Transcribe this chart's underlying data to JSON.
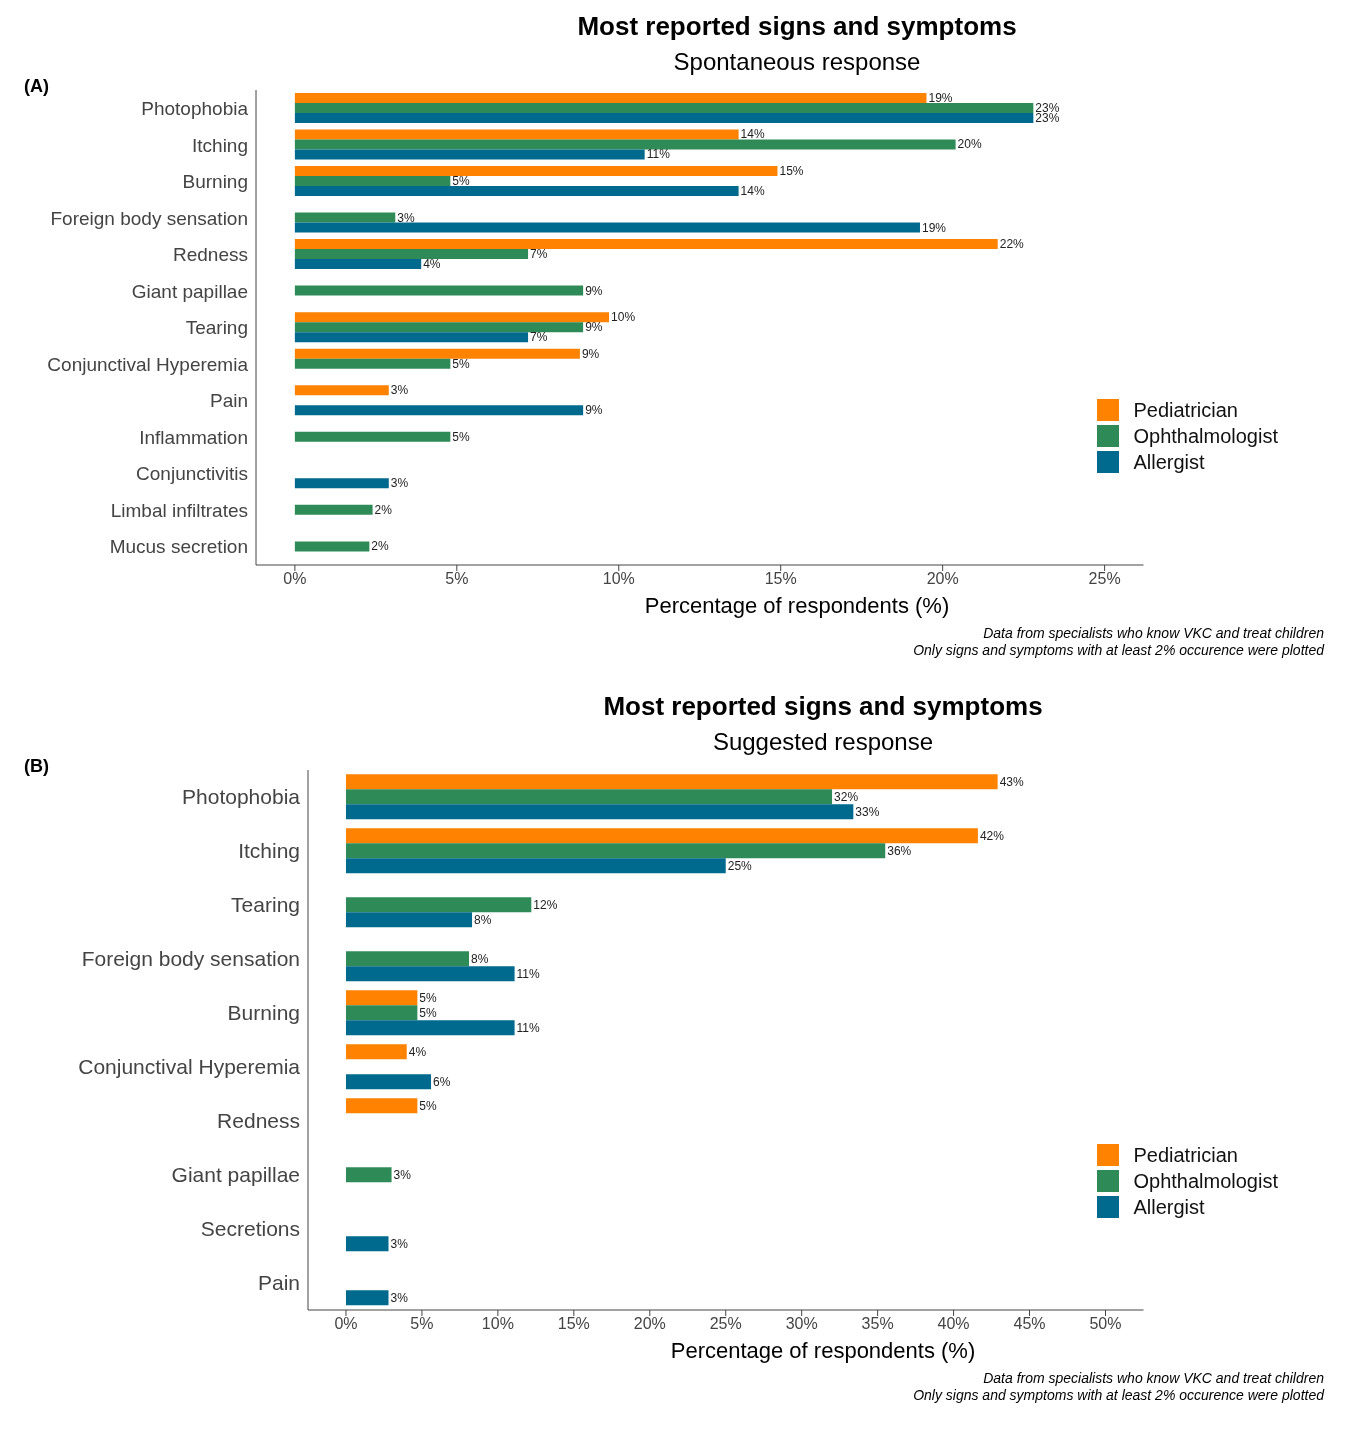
{
  "chart_data": [
    {
      "type": "bar",
      "orientation": "horizontal",
      "title": "Most reported signs and symptoms",
      "subtitle": "Spontaneous response",
      "xlabel": "Percentage of respondents (%)",
      "annotations": [
        "(A)",
        "Data from specialists who know VKC and treat children",
        "Only signs and symptoms with at least 2% occurence were plotted"
      ],
      "categories": [
        "Photophobia",
        "Itching",
        "Burning",
        "Foreign body sensation",
        "Redness",
        "Giant papillae",
        "Tearing",
        "Conjunctival Hyperemia",
        "Pain",
        "Inflammation",
        "Conjunctivitis",
        "Limbal infiltrates",
        "Mucus secretion"
      ],
      "series": [
        {
          "name": "Pediatrician",
          "color": "#ff8200",
          "values": [
            19.5,
            13.7,
            14.9,
            null,
            21.7,
            null,
            9.7,
            8.8,
            2.9,
            null,
            null,
            null,
            null
          ],
          "value_labels": [
            "19%",
            "14%",
            "15%",
            null,
            "22%",
            null,
            "10%",
            "9%",
            "3%",
            null,
            null,
            null,
            null
          ]
        },
        {
          "name": "Ophthalmologist",
          "color": "#2e8b57",
          "values": [
            22.8,
            20.4,
            4.8,
            3.1,
            7.2,
            8.9,
            8.9,
            4.8,
            null,
            4.8,
            null,
            2.4,
            2.3
          ],
          "value_labels": [
            "23%",
            "20%",
            "5%",
            "3%",
            "7%",
            "9%",
            "9%",
            "5%",
            null,
            "5%",
            null,
            "2%",
            "2%"
          ]
        },
        {
          "name": "Allergist",
          "color": "#006a8e",
          "values": [
            22.8,
            10.8,
            13.7,
            19.3,
            3.9,
            null,
            7.2,
            null,
            8.9,
            null,
            2.9,
            null,
            null
          ],
          "value_labels": [
            "23%",
            "11%",
            "14%",
            "19%",
            "4%",
            null,
            "7%",
            null,
            "9%",
            null,
            "3%",
            null,
            null
          ]
        }
      ],
      "xlim": [
        -1.2,
        26.2
      ],
      "xticks": [
        {
          "value": 0,
          "label": "0%"
        },
        {
          "value": 5,
          "label": "5%"
        },
        {
          "value": 10,
          "label": "10%"
        },
        {
          "value": 15,
          "label": "15%"
        },
        {
          "value": 20,
          "label": "20%"
        },
        {
          "value": 25,
          "label": "25%"
        }
      ],
      "legend": "bottom right",
      "grid": false
    },
    {
      "type": "bar",
      "orientation": "horizontal",
      "title": "Most reported signs and symptoms",
      "subtitle": "Suggested response",
      "xlabel": "Percentage of respondents (%)",
      "annotations": [
        "(B)",
        "Data from specialists who know VKC and treat children",
        "Only signs and symptoms with at least 2% occurence were plotted"
      ],
      "categories": [
        "Photophobia",
        "Itching",
        "Tearing",
        "Foreign body sensation",
        "Burning",
        "Conjunctival Hyperemia",
        "Redness",
        "Giant papillae",
        "Secretions",
        "Pain"
      ],
      "series": [
        {
          "name": "Pediatrician",
          "color": "#ff8200",
          "values": [
            42.9,
            41.6,
            null,
            null,
            4.7,
            4.0,
            4.7,
            null,
            null,
            null
          ],
          "value_labels": [
            "43%",
            "42%",
            null,
            null,
            "5%",
            "4%",
            "5%",
            null,
            null,
            null
          ]
        },
        {
          "name": "Ophthalmologist",
          "color": "#2e8b57",
          "values": [
            32.0,
            35.5,
            12.2,
            8.1,
            4.7,
            null,
            null,
            3.0,
            null,
            null
          ],
          "value_labels": [
            "32%",
            "36%",
            "12%",
            "8%",
            "5%",
            null,
            null,
            "3%",
            null,
            null
          ]
        },
        {
          "name": "Allergist",
          "color": "#006a8e",
          "values": [
            33.4,
            25.0,
            8.3,
            11.1,
            11.1,
            5.6,
            null,
            null,
            2.8,
            2.8
          ],
          "value_labels": [
            "33%",
            "25%",
            "8%",
            "11%",
            "11%",
            "6%",
            null,
            null,
            "3%",
            "3%"
          ]
        }
      ],
      "xlim": [
        -2.5,
        52.5
      ],
      "xticks": [
        {
          "value": 0,
          "label": "0%"
        },
        {
          "value": 5,
          "label": "5%"
        },
        {
          "value": 10,
          "label": "10%"
        },
        {
          "value": 15,
          "label": "15%"
        },
        {
          "value": 20,
          "label": "20%"
        },
        {
          "value": 25,
          "label": "25%"
        },
        {
          "value": 30,
          "label": "30%"
        },
        {
          "value": 35,
          "label": "35%"
        },
        {
          "value": 40,
          "label": "40%"
        },
        {
          "value": 45,
          "label": "45%"
        },
        {
          "value": 50,
          "label": "50%"
        }
      ],
      "legend": "bottom right",
      "grid": false
    }
  ]
}
